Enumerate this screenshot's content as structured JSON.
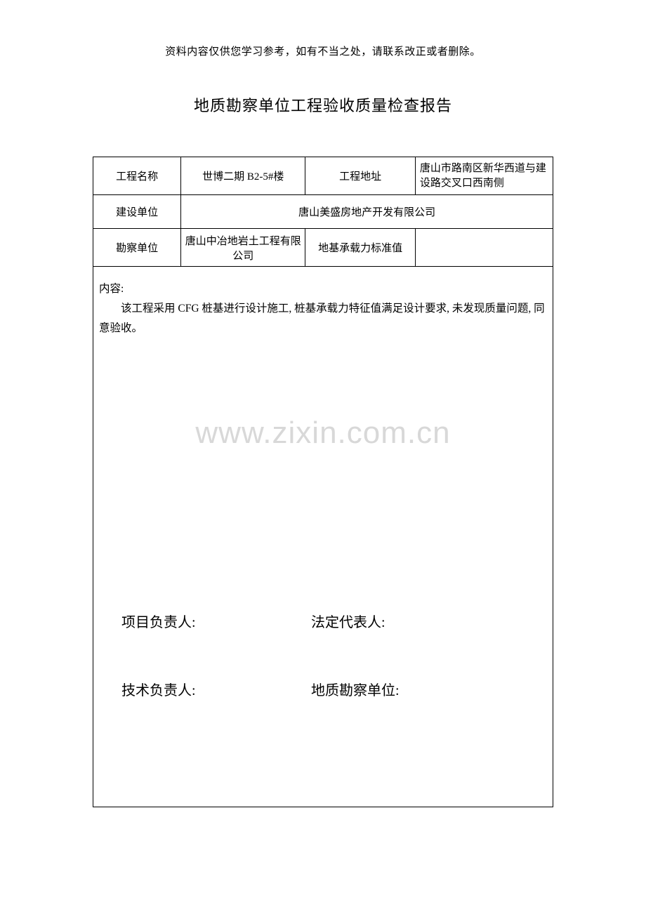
{
  "header_note": "资料内容仅供您学习参考，如有不当之处，请联系改正或者删除。",
  "title": "地质勘察单位工程验收质量检查报告",
  "table": {
    "row1": {
      "label1": "工程名称",
      "value1": "世博二期 B2-5#楼",
      "label2": "工程地址",
      "value2": "唐山市路南区新华西道与建设路交叉口西南侧"
    },
    "row2": {
      "label1": "建设单位",
      "value1": "唐山美盛房地产开发有限公司"
    },
    "row3": {
      "label1": "勘察单位",
      "value1": "唐山中冶地岩土工程有限公司",
      "label2": "地基承载力标准值",
      "value2": ""
    }
  },
  "content": {
    "label": "内容:",
    "text": "该工程采用 CFG 桩基进行设计施工, 桩基承载力特征值满足设计要求, 未发现质量问题, 同意验收。"
  },
  "watermark": "www.zixin.com.cn",
  "signatures": {
    "row1_left": "项目负责人:",
    "row1_right": "法定代表人:",
    "row2_left": "技术负责人:",
    "row2_right": "地质勘察单位:"
  }
}
